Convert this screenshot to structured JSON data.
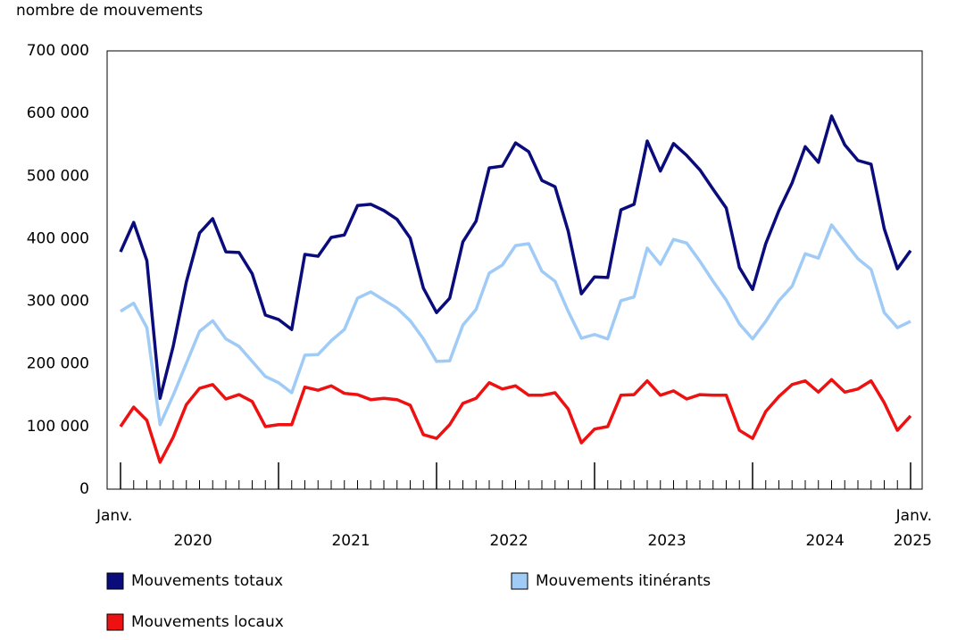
{
  "chart_data": {
    "type": "line",
    "y_axis_title": "nombre de mouvements",
    "categories": [
      "Janv.",
      null,
      null,
      null,
      null,
      null,
      null,
      null,
      null,
      null,
      null,
      null,
      null,
      null,
      null,
      null,
      null,
      null,
      null,
      null,
      null,
      null,
      null,
      null,
      null,
      null,
      null,
      null,
      null,
      null,
      null,
      null,
      null,
      null,
      null,
      null,
      null,
      null,
      null,
      null,
      null,
      null,
      null,
      null,
      null,
      null,
      null,
      null,
      null,
      null,
      null,
      null,
      null,
      null,
      null,
      null,
      null,
      null,
      null,
      null,
      "Janv."
    ],
    "years": [
      "2020",
      "2021",
      "2022",
      "2023",
      "2024",
      "2025"
    ],
    "ylim": [
      0,
      700000
    ],
    "yticks": [
      {
        "value": 0,
        "label": "0"
      },
      {
        "value": 100000,
        "label": "100 000"
      },
      {
        "value": 200000,
        "label": "200 000"
      },
      {
        "value": 300000,
        "label": "300 000"
      },
      {
        "value": 400000,
        "label": "400 000"
      },
      {
        "value": 500000,
        "label": "500 000"
      },
      {
        "value": 600000,
        "label": "600 000"
      },
      {
        "value": 700000,
        "label": "700 000"
      }
    ],
    "grid": false,
    "series": [
      {
        "name": "Mouvements totaux",
        "color": "#0b0c7c",
        "values": [
          379000,
          426000,
          365000,
          145000,
          228000,
          331000,
          409000,
          432000,
          379000,
          378000,
          344000,
          278000,
          271000,
          255000,
          375000,
          372000,
          402000,
          406000,
          453000,
          455000,
          445000,
          431000,
          401000,
          321000,
          282000,
          305000,
          395000,
          428000,
          513000,
          516000,
          553000,
          539000,
          493000,
          483000,
          412000,
          312000,
          339000,
          338000,
          446000,
          455000,
          556000,
          508000,
          552000,
          533000,
          510000,
          479000,
          449000,
          354000,
          319000,
          392000,
          445000,
          489000,
          547000,
          522000,
          596000,
          550000,
          525000,
          519000,
          416000,
          352000,
          381000
        ]
      },
      {
        "name": "Mouvements itinérants",
        "color": "#9fcbf6",
        "values": [
          284000,
          297000,
          258000,
          103000,
          150000,
          201000,
          252000,
          269000,
          240000,
          228000,
          204000,
          180000,
          170000,
          154000,
          214000,
          215000,
          237000,
          255000,
          305000,
          315000,
          302000,
          289000,
          269000,
          240000,
          204000,
          205000,
          262000,
          287000,
          345000,
          358000,
          389000,
          392000,
          348000,
          332000,
          284000,
          241000,
          247000,
          240000,
          301000,
          307000,
          385000,
          359000,
          399000,
          393000,
          364000,
          332000,
          302000,
          264000,
          240000,
          268000,
          301000,
          324000,
          376000,
          369000,
          422000,
          395000,
          368000,
          351000,
          282000,
          258000,
          268000
        ]
      },
      {
        "name": "Mouvements locaux",
        "color": "#ee1111",
        "values": [
          100000,
          131000,
          110000,
          43000,
          83000,
          135000,
          161000,
          167000,
          144000,
          151000,
          140000,
          100000,
          103000,
          103000,
          163000,
          158000,
          165000,
          153000,
          151000,
          143000,
          145000,
          143000,
          134000,
          87000,
          81000,
          103000,
          137000,
          145000,
          170000,
          160000,
          165000,
          150000,
          150000,
          154000,
          128000,
          74000,
          96000,
          100000,
          150000,
          151000,
          173000,
          150000,
          157000,
          144000,
          151000,
          150000,
          150000,
          94000,
          81000,
          124000,
          148000,
          167000,
          173000,
          155000,
          175000,
          155000,
          160000,
          173000,
          138000,
          94000,
          117000
        ]
      }
    ]
  }
}
